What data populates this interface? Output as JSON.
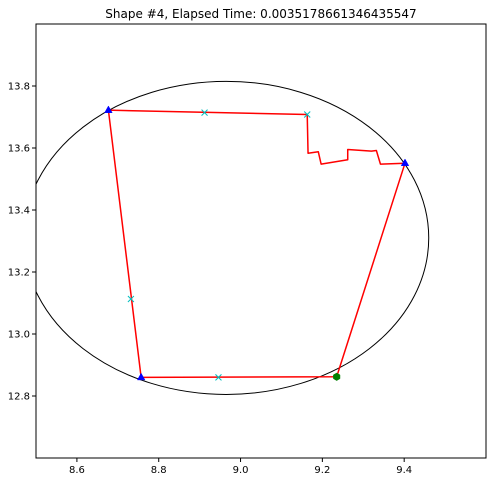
{
  "chart_data": {
    "type": "scatter",
    "title": "Shape #4, Elapsed Time: 0.0035178661346435547",
    "xlabel": "",
    "ylabel": "",
    "xlim": [
      8.5,
      9.6
    ],
    "ylim": [
      12.6,
      14.0
    ],
    "x_ticks": [
      8.6,
      8.8,
      9.0,
      9.2,
      9.4
    ],
    "x_tick_labels": [
      "8.6",
      "8.8",
      "9.0",
      "9.2",
      "9.4"
    ],
    "y_ticks": [
      12.8,
      13.0,
      13.2,
      13.4,
      13.6,
      13.8
    ],
    "y_tick_labels": [
      "12.8",
      "13.0",
      "13.2",
      "13.4",
      "13.6",
      "13.8"
    ],
    "grid": false,
    "legend": "none",
    "ellipse": {
      "center": [
        8.965,
        13.31
      ],
      "radius_x": 0.495,
      "radius_y": 0.505,
      "color": "#000000"
    },
    "series": [
      {
        "kind": "path",
        "color": "#ff0000",
        "x": [
          8.677,
          9.163,
          9.165,
          9.19,
          9.197,
          9.262,
          9.262,
          9.32,
          9.332,
          9.342,
          9.402,
          9.235,
          8.757,
          8.677
        ],
        "y": [
          13.722,
          13.708,
          13.583,
          13.588,
          13.548,
          13.562,
          13.595,
          13.59,
          13.592,
          13.548,
          13.551,
          12.862,
          12.86,
          13.722
        ]
      },
      {
        "kind": "markers",
        "marker": "triangle",
        "color": "#0000ff",
        "x": [
          8.677,
          9.402,
          8.757
        ],
        "y": [
          13.722,
          13.551,
          12.86
        ]
      },
      {
        "kind": "markers",
        "marker": "hexagon",
        "color": "#008000",
        "x": [
          9.235
        ],
        "y": [
          12.862
        ]
      },
      {
        "kind": "markers",
        "marker": "x",
        "color": "#00bfbf",
        "x": [
          8.912,
          9.163,
          8.732,
          8.946
        ],
        "y": [
          13.714,
          13.708,
          13.113,
          12.86
        ]
      }
    ]
  }
}
